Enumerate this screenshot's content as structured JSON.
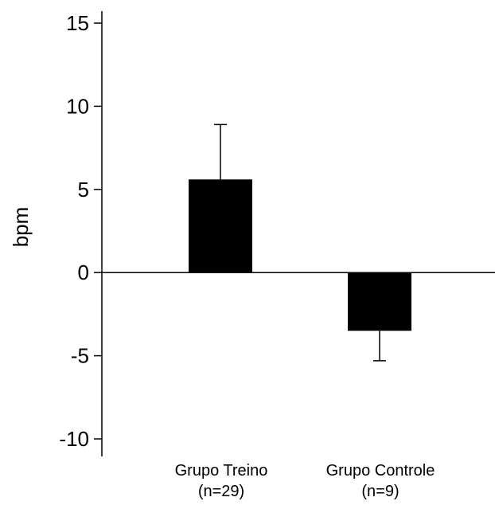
{
  "chart_data": {
    "type": "bar",
    "title": "",
    "xlabel": "",
    "ylabel": "bpm",
    "ylim": [
      -10,
      15
    ],
    "yticks": [
      15,
      10,
      5,
      0,
      -5,
      -10
    ],
    "categories": [
      {
        "line1": "Grupo Treino",
        "line2": "(n=29)"
      },
      {
        "line1": "Grupo Controle",
        "line2": "(n=9)"
      }
    ],
    "values": [
      5.6,
      -3.5
    ],
    "error_bars": [
      3.3,
      1.8
    ],
    "bar_color": "#000000",
    "grid": false
  }
}
